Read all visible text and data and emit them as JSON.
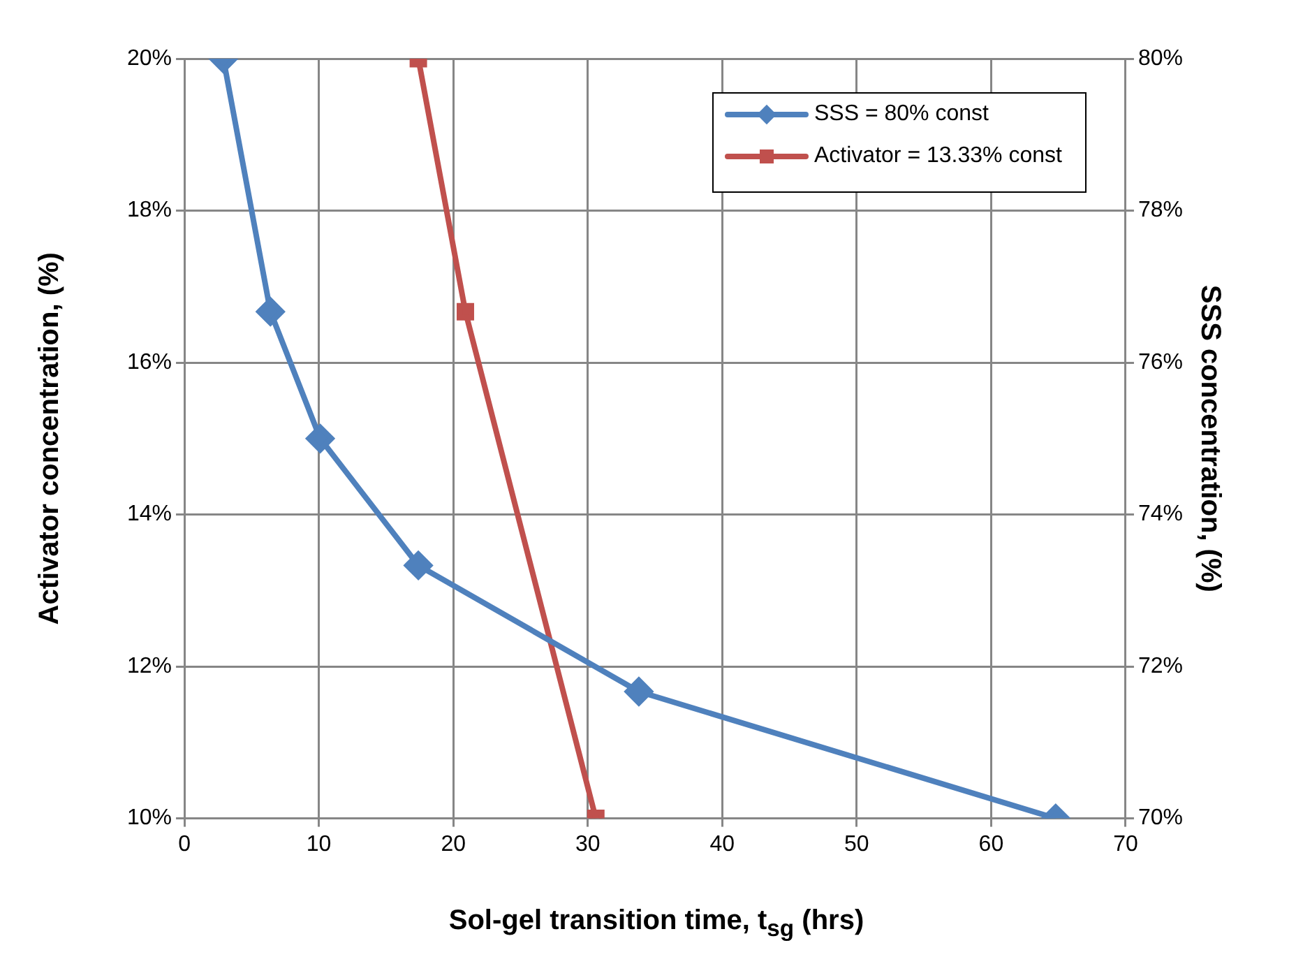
{
  "chart_data": {
    "type": "line",
    "xlabel": "Sol-gel transition time, t$_{sg}$ (hrs)",
    "ylabel": "Activator concentration, (%)",
    "y2label": "SSS concentration, (%)",
    "series": [
      {
        "name": "SSS = 80% const",
        "color": "#4f81bd",
        "marker": "diamond",
        "x": [
          2.9,
          6.4,
          10.1,
          17.4,
          33.8,
          64.8
        ],
        "values": [
          20,
          16.67,
          15,
          13.33,
          11.67,
          10
        ]
      },
      {
        "name": "Activator = 13.33% const",
        "color": "#c0504d",
        "marker": "square",
        "axis": "y2",
        "x": [
          17.4,
          20.9,
          30.6
        ],
        "values": [
          80,
          76.67,
          70
        ]
      }
    ],
    "xlim": [
      0,
      70
    ],
    "xticks": [
      0,
      10,
      20,
      30,
      40,
      50,
      60,
      70
    ],
    "ylim": [
      10,
      20
    ],
    "yticks": [
      {
        "value": 10,
        "label": "10%"
      },
      {
        "value": 12,
        "label": "12%"
      },
      {
        "value": 14,
        "label": "14%"
      },
      {
        "value": 16,
        "label": "16%"
      },
      {
        "value": 18,
        "label": "18%"
      },
      {
        "value": 20,
        "label": "20%"
      }
    ],
    "y2lim": [
      70,
      80
    ],
    "y2ticks": [
      {
        "value": 70,
        "label": "70%"
      },
      {
        "value": 72,
        "label": "72%"
      },
      {
        "value": 74,
        "label": "74%"
      },
      {
        "value": 76,
        "label": "76%"
      },
      {
        "value": 78,
        "label": "78%"
      },
      {
        "value": 80,
        "label": "80%"
      }
    ],
    "grid": true,
    "legend": "top right",
    "line_style": "solid"
  }
}
